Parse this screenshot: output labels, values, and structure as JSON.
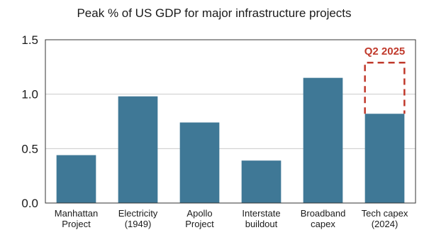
{
  "chart_data": {
    "type": "bar",
    "title": "Peak % of US GDP for major infrastructure projects",
    "xlabel": "",
    "ylabel": "",
    "ylim": [
      0,
      1.5
    ],
    "yticks": [
      "0.0",
      "0.5",
      "1.0",
      "1.5"
    ],
    "grid": true,
    "categories": [
      [
        "Manhattan",
        "Project"
      ],
      [
        "Electricity",
        "(1949)"
      ],
      [
        "Apollo",
        "Project"
      ],
      [
        "Interstate",
        "buildout"
      ],
      [
        "Broadband",
        "capex"
      ],
      [
        "Tech capex",
        "(2024)"
      ]
    ],
    "values": [
      0.44,
      0.98,
      0.74,
      0.39,
      1.15,
      0.82
    ],
    "bar_color": "#3f7896",
    "annotation": {
      "label": "Q2 2025",
      "value": 1.29,
      "category_index": 5,
      "style": "dashed-outline",
      "color": "#c0392b"
    }
  }
}
